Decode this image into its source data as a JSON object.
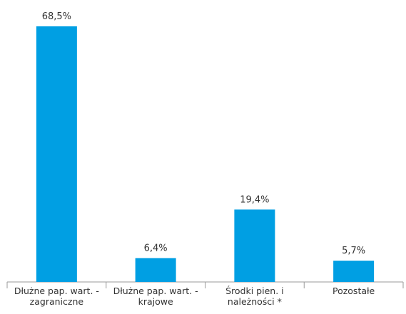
{
  "chart_data": {
    "type": "bar",
    "categories": [
      "Dłużne pap. wart. - zagraniczne",
      "Dłużne pap. wart. - krajowe",
      "Środki pien. i należności *",
      "Pozostałe"
    ],
    "values": [
      68.5,
      6.4,
      19.4,
      5.7
    ],
    "value_labels": [
      "68,5%",
      "6,4%",
      "19,4%",
      "5,7%"
    ],
    "color": "#009fe3"
  }
}
